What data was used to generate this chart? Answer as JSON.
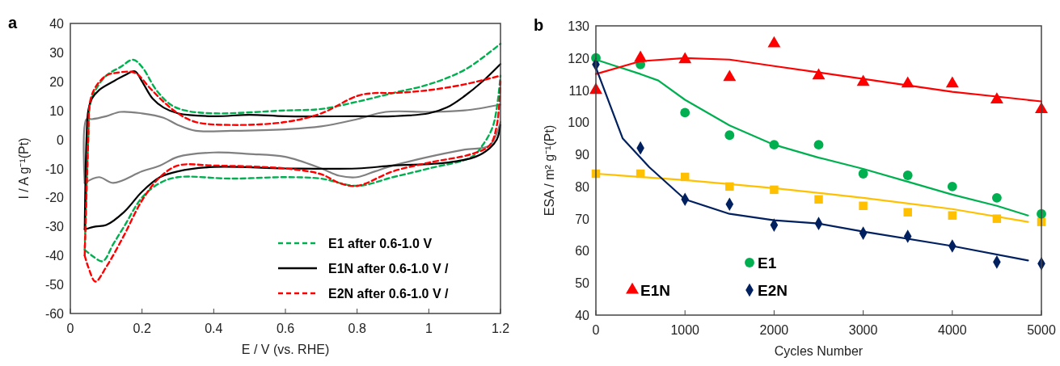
{
  "chart_data": [
    {
      "type": "line",
      "title": "a",
      "xlabel": "E / V (vs. RHE)",
      "ylabel": "I / A g⁻¹(Pt)",
      "xlim": [
        0,
        1.2
      ],
      "ylim": [
        -60,
        40
      ],
      "xticks": [
        0,
        0.2,
        0.4,
        0.6,
        0.8,
        1,
        1.2
      ],
      "yticks": [
        -60,
        -50,
        -40,
        -30,
        -20,
        -10,
        0,
        10,
        20,
        30,
        40
      ],
      "grid": false,
      "legend": "bottom right",
      "marker": "none",
      "series": [
        {
          "color": "#808080",
          "line_style": "solid",
          "x": [
            0.04,
            0.045,
            0.06,
            0.1,
            0.14,
            0.2,
            0.26,
            0.3,
            0.35,
            0.45,
            0.6,
            0.7,
            0.8,
            0.88,
            1.0,
            1.1,
            1.2
          ],
          "values": [
            -15,
            7,
            7,
            8,
            9.5,
            9,
            7.5,
            5,
            3,
            3,
            3.5,
            4.5,
            7,
            9.5,
            9.5,
            10,
            12
          ]
        },
        {
          "color": "#808080",
          "line_style": "solid",
          "x": [
            0.04,
            0.08,
            0.12,
            0.2,
            0.25,
            0.3,
            0.4,
            0.5,
            0.6,
            0.7,
            0.75,
            0.8,
            0.85,
            0.9,
            1.0,
            1.1,
            1.17,
            1.2
          ],
          "values": [
            -15,
            -13,
            -15,
            -11,
            -9,
            -6,
            -4.5,
            -5,
            -6,
            -10,
            -12.5,
            -13,
            -11,
            -9,
            -6,
            -3.5,
            -2,
            6
          ]
        },
        {
          "name": "E1 after 0.6-1.0 V",
          "color": "#00b050",
          "line_style": "dashed",
          "x": [
            0.04,
            0.05,
            0.055,
            0.07,
            0.1,
            0.14,
            0.175,
            0.2,
            0.24,
            0.28,
            0.32,
            0.4,
            0.6,
            0.7,
            0.8,
            0.9,
            1.0,
            1.1,
            1.2
          ],
          "values": [
            -38,
            0,
            12,
            17,
            22,
            25,
            27.5,
            25,
            17,
            12,
            10,
            9,
            10,
            10.5,
            13,
            16,
            19,
            24,
            33
          ]
        },
        {
          "color": "#00b050",
          "line_style": "dashed",
          "x": [
            0.04,
            0.06,
            0.09,
            0.12,
            0.15,
            0.2,
            0.25,
            0.3,
            0.45,
            0.6,
            0.7,
            0.8,
            0.9,
            1.0,
            1.12,
            1.15,
            1.18,
            1.2
          ],
          "values": [
            -38,
            -40,
            -42,
            -36,
            -30,
            -20,
            -15,
            -13,
            -13.5,
            -13,
            -13.5,
            -16,
            -13,
            -10,
            -6,
            -2,
            5,
            22
          ]
        },
        {
          "name": "E1N after 0.6-1.0 V  /",
          "color": "#000000",
          "line_style": "solid",
          "x": [
            0.04,
            0.045,
            0.05,
            0.06,
            0.08,
            0.12,
            0.15,
            0.18,
            0.2,
            0.23,
            0.26,
            0.3,
            0.4,
            0.5,
            0.6,
            0.8,
            0.9,
            1.0,
            1.05,
            1.1,
            1.15,
            1.2
          ],
          "values": [
            -31,
            0,
            10,
            14,
            17,
            20,
            22,
            23.5,
            20,
            14,
            11,
            9,
            8,
            8.5,
            8,
            8,
            8,
            9,
            11,
            15,
            20,
            26
          ]
        },
        {
          "color": "#000000",
          "line_style": "solid",
          "x": [
            0.04,
            0.07,
            0.1,
            0.15,
            0.2,
            0.25,
            0.3,
            0.4,
            0.6,
            0.8,
            0.9,
            1.05,
            1.13,
            1.17,
            1.19,
            1.2
          ],
          "values": [
            -31,
            -30,
            -29.5,
            -25,
            -18,
            -13,
            -11,
            -9.5,
            -10,
            -10,
            -9,
            -8,
            -6,
            -3,
            0,
            5
          ]
        },
        {
          "name": "E2N after 0.6-1.0 V  /",
          "color": "#ff0000",
          "line_style": "dashed",
          "x": [
            0.04,
            0.05,
            0.055,
            0.07,
            0.1,
            0.13,
            0.18,
            0.22,
            0.26,
            0.3,
            0.35,
            0.45,
            0.6,
            0.7,
            0.8,
            0.85,
            0.9,
            1.0,
            1.1,
            1.2
          ],
          "values": [
            -40,
            0,
            13,
            18,
            22,
            23,
            23,
            18,
            13,
            9,
            6,
            5,
            6,
            9,
            15,
            16,
            16,
            17,
            19,
            22
          ]
        },
        {
          "color": "#ff0000",
          "line_style": "dashed",
          "x": [
            0.04,
            0.05,
            0.07,
            0.1,
            0.15,
            0.2,
            0.25,
            0.3,
            0.4,
            0.6,
            0.7,
            0.75,
            0.8,
            0.9,
            1.0,
            1.12,
            1.17,
            1.19,
            1.2
          ],
          "values": [
            -40,
            -44,
            -49,
            -44,
            -33,
            -21,
            -13,
            -9,
            -9,
            -10,
            -12,
            -15,
            -16,
            -11,
            -8,
            -5,
            -2,
            5,
            20
          ]
        }
      ]
    },
    {
      "type": "scatter",
      "title": "b",
      "xlabel": "Cycles Number",
      "ylabel": "ESA / m² g⁻¹(Pt)",
      "xlim": [
        0,
        5000
      ],
      "ylim": [
        40,
        130
      ],
      "xticks": [
        0,
        1000,
        2000,
        3000,
        4000,
        5000
      ],
      "yticks": [
        40,
        50,
        60,
        70,
        80,
        90,
        100,
        110,
        120,
        130
      ],
      "grid": false,
      "legend": "bottom left",
      "series": [
        {
          "color": "#ffc000",
          "marker": "square",
          "x": [
            0,
            500,
            1000,
            1500,
            2000,
            2500,
            3000,
            3500,
            4000,
            4500,
            5000
          ],
          "values": [
            84,
            84,
            83,
            80,
            79,
            76,
            74,
            72,
            71,
            70,
            69
          ]
        },
        {
          "name": "E1",
          "color": "#00b050",
          "marker": "circle",
          "x": [
            0,
            500,
            1000,
            1500,
            2000,
            2500,
            3000,
            3500,
            4000,
            4500,
            5000
          ],
          "values": [
            120,
            118,
            103,
            96,
            93,
            93,
            84,
            83.5,
            80,
            76.5,
            71.5
          ]
        },
        {
          "name": "E1N",
          "color": "#ff0000",
          "marker": "triangle",
          "x": [
            0,
            500,
            1000,
            1500,
            2000,
            2500,
            3000,
            3500,
            4000,
            4500,
            5000
          ],
          "values": [
            110,
            120,
            119.5,
            114,
            124.5,
            114.5,
            112.5,
            112,
            112,
            107,
            104
          ]
        },
        {
          "name": "E2N",
          "color": "#002060",
          "marker": "diamond",
          "x": [
            0,
            500,
            1000,
            1500,
            2000,
            2500,
            3000,
            3500,
            4000,
            4500,
            5000
          ],
          "values": [
            118,
            92,
            76,
            74.5,
            68,
            68.5,
            65.5,
            64.5,
            61.5,
            56.5,
            56
          ]
        },
        {
          "type": "line",
          "color": "#ffc000",
          "marker": "none",
          "x": [
            0,
            1000,
            2000,
            3000,
            4000,
            4850
          ],
          "values": [
            84,
            82,
            79.5,
            76.5,
            73,
            69
          ]
        },
        {
          "type": "line",
          "color": "#00b050",
          "marker": "none",
          "x": [
            0,
            500,
            700,
            1000,
            1500,
            2000,
            2500,
            3000,
            3500,
            4000,
            4500,
            4850
          ],
          "values": [
            119.5,
            115,
            113,
            107,
            99,
            93,
            89,
            85.5,
            81.5,
            77.5,
            74,
            71
          ]
        },
        {
          "type": "line",
          "color": "#ff0000",
          "marker": "none",
          "x": [
            0,
            500,
            1000,
            1500,
            2000,
            2500,
            3000,
            3500,
            4000,
            4500,
            5000
          ],
          "values": [
            115,
            119,
            120,
            119.5,
            117.5,
            115.5,
            113.5,
            111.5,
            109.5,
            108,
            106.5
          ]
        },
        {
          "type": "line",
          "color": "#002060",
          "marker": "none",
          "x": [
            0,
            300,
            600,
            1000,
            1500,
            2000,
            2500,
            3000,
            4000,
            4850
          ],
          "values": [
            117,
            95,
            86,
            76,
            71.5,
            69.5,
            68.5,
            66,
            61.5,
            57
          ]
        }
      ]
    }
  ]
}
